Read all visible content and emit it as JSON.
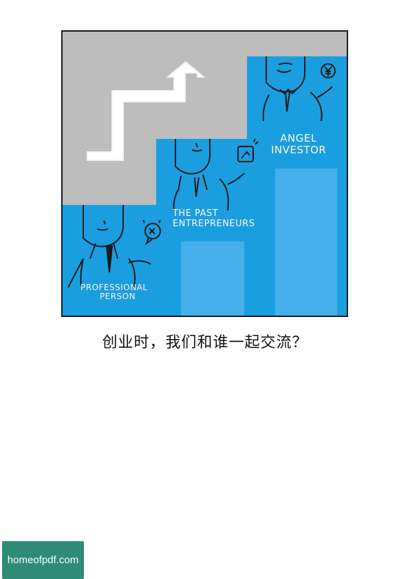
{
  "illustration": {
    "labels": {
      "professional_person": [
        "PROFESSIONAL",
        "PERSON"
      ],
      "past_entrepreneurs": [
        "THE PAST",
        "ENTREPRENEURS"
      ],
      "angel_investor": [
        "ANGEL",
        "INVESTOR"
      ]
    },
    "icons": [
      "arrow-up-icon",
      "question-face-icon",
      "chart-card-icon",
      "yuan-coin-icon"
    ],
    "colors": {
      "background": "#bdbdbd",
      "blue": "#1b9ee0",
      "line": "#1a1a1a",
      "pillar": "#46aee8"
    }
  },
  "caption": "创业时，我们和谁一起交流？",
  "watermark": "homeofpdf.com"
}
